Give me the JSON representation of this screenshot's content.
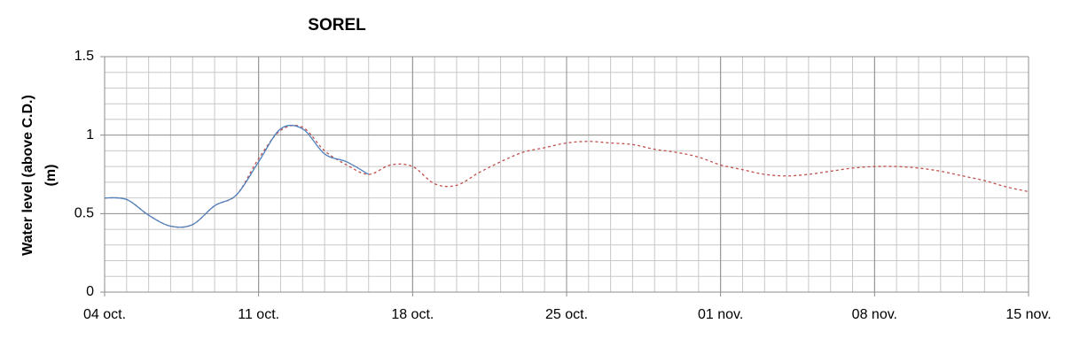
{
  "chart_data": {
    "type": "line",
    "title": "SOREL",
    "ylabel": [
      "Water level (above C.D.)",
      "(m)"
    ],
    "xlim": [
      0,
      42
    ],
    "xticks": [
      {
        "value": 0,
        "label": "04 oct."
      },
      {
        "value": 7,
        "label": "11 oct."
      },
      {
        "value": 14,
        "label": "18 oct."
      },
      {
        "value": 21,
        "label": "25 oct."
      },
      {
        "value": 28,
        "label": "01 nov."
      },
      {
        "value": 35,
        "label": "08 nov."
      },
      {
        "value": 42,
        "label": "15 nov."
      }
    ],
    "ylim": [
      0,
      1.5
    ],
    "yticks": [
      0,
      0.5,
      1,
      1.5
    ],
    "minor_xticks": [
      0,
      1,
      2,
      3,
      4,
      5,
      6,
      7,
      8,
      9,
      10,
      11,
      12,
      13,
      14,
      15,
      16,
      17,
      18,
      19,
      20,
      21,
      22,
      23,
      24,
      25,
      26,
      27,
      28,
      29,
      30,
      31,
      32,
      33,
      34,
      35,
      36,
      37,
      38,
      39,
      40,
      41,
      42
    ],
    "minor_yticks": [
      0.1,
      0.2,
      0.3,
      0.4,
      0.6,
      0.7,
      0.8,
      0.9,
      1.1,
      1.2,
      1.3,
      1.4
    ],
    "grid": true,
    "series": [
      {
        "color": "#c0504d",
        "dashed": true,
        "x": [
          0,
          1,
          2,
          3,
          4,
          5,
          6,
          7,
          8,
          9,
          10,
          11,
          12,
          13,
          14,
          15,
          16,
          17,
          18,
          19,
          20,
          21,
          22,
          23,
          24,
          25,
          26,
          27,
          28,
          29,
          30,
          31,
          32,
          33,
          34,
          35,
          36,
          37,
          38,
          39,
          40,
          41,
          42
        ],
        "values": [
          0.6,
          0.59,
          0.49,
          0.42,
          0.43,
          0.55,
          0.62,
          0.85,
          1.03,
          1.05,
          0.9,
          0.81,
          0.75,
          0.81,
          0.8,
          0.69,
          0.68,
          0.76,
          0.83,
          0.89,
          0.92,
          0.95,
          0.96,
          0.95,
          0.94,
          0.91,
          0.89,
          0.86,
          0.81,
          0.78,
          0.75,
          0.74,
          0.75,
          0.77,
          0.79,
          0.8,
          0.8,
          0.79,
          0.77,
          0.74,
          0.71,
          0.67,
          0.64
        ]
      },
      {
        "color": "#4f81bd",
        "dashed": false,
        "x": [
          0,
          1,
          2,
          3,
          4,
          5,
          6,
          7,
          8,
          9,
          10,
          11,
          12
        ],
        "values": [
          0.6,
          0.59,
          0.49,
          0.42,
          0.43,
          0.55,
          0.62,
          0.83,
          1.04,
          1.04,
          0.88,
          0.83,
          0.75
        ]
      }
    ]
  }
}
